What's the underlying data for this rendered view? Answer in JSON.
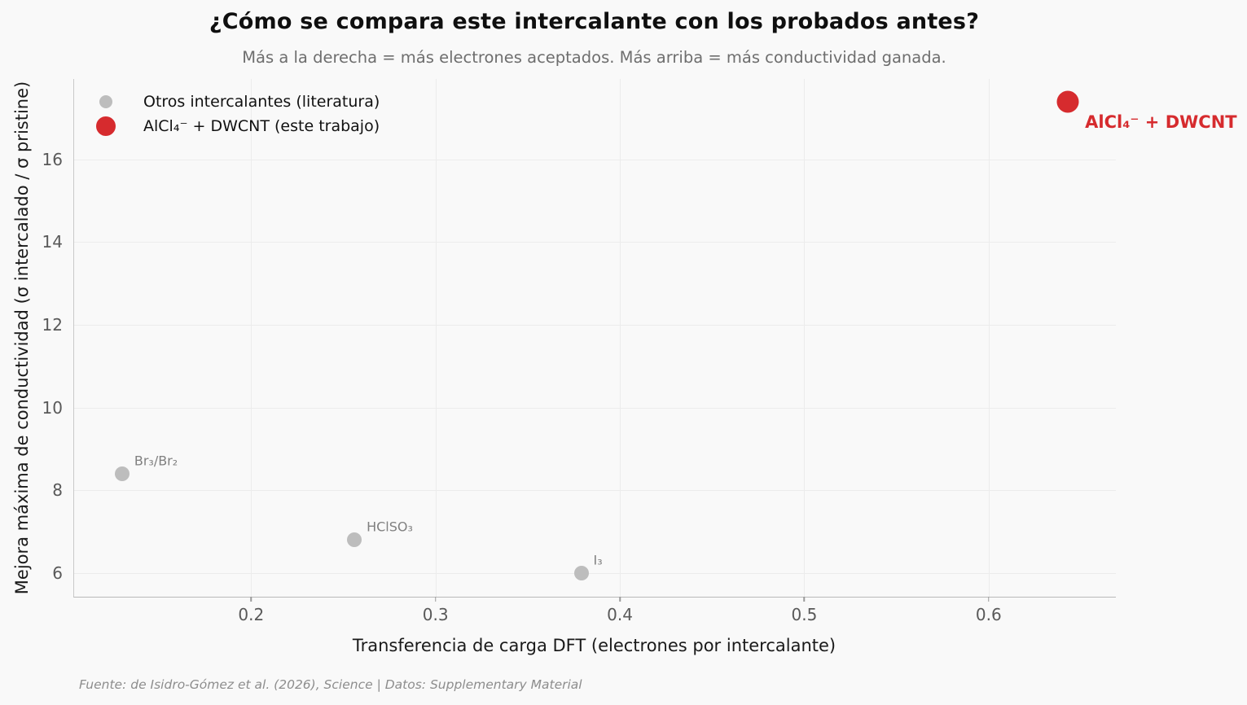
{
  "chart_data": {
    "type": "scatter",
    "title": "¿Cómo se compara este intercalante con los probados antes?",
    "subtitle": "Más a la derecha = más electrones aceptados. Más arriba = más conductividad ganada.",
    "xlabel": "Transferencia de carga DFT (electrones por intercalante)",
    "ylabel": "Mejora máxima de conductividad (σ intercalado / σ pristine)",
    "footer": "Fuente: de Isidro-Gómez et al. (2026), Science | Datos: Supplementary Material",
    "xlim": [
      0.104,
      0.669
    ],
    "ylim": [
      5.42,
      17.95
    ],
    "x_ticks": [
      0.2,
      0.3,
      0.4,
      0.5,
      0.6
    ],
    "y_ticks": [
      6,
      8,
      10,
      12,
      14,
      16
    ],
    "grid": true,
    "legend_position": "upper-left",
    "series": [
      {
        "name": "other",
        "legend_label": "Otros intercalantes (literatura)",
        "color": "#bdbdbd",
        "marker_size": 18,
        "legend_marker_size": 16,
        "points": [
          {
            "label": "Br₃/Br₂",
            "x": 0.13,
            "y": 8.4
          },
          {
            "label": "HClSO₃",
            "x": 0.256,
            "y": 6.8
          },
          {
            "label": "I₃",
            "x": 0.379,
            "y": 6.0
          }
        ]
      },
      {
        "name": "this_work",
        "legend_label": "AlCl₄⁻ + DWCNT (este trabajo)",
        "color": "#d62b2e",
        "marker_size": 27,
        "legend_marker_size": 24,
        "points": [
          {
            "label": "AlCl₄⁻ + DWCNT",
            "x": 0.643,
            "y": 17.4
          }
        ]
      }
    ]
  },
  "colors": {
    "background": "#f9f9f9",
    "grid": "#ececec",
    "spine": "#c9c9c9",
    "tick_label": "#595959",
    "title": "#0f0f0f",
    "subtitle": "#6e6e6e",
    "axis_label": "#1a1a1a",
    "footer": "#8d8d8d",
    "other_series": "#bdbdbd",
    "this_work_series": "#d62b2e",
    "point_label_gray": "#808080"
  }
}
